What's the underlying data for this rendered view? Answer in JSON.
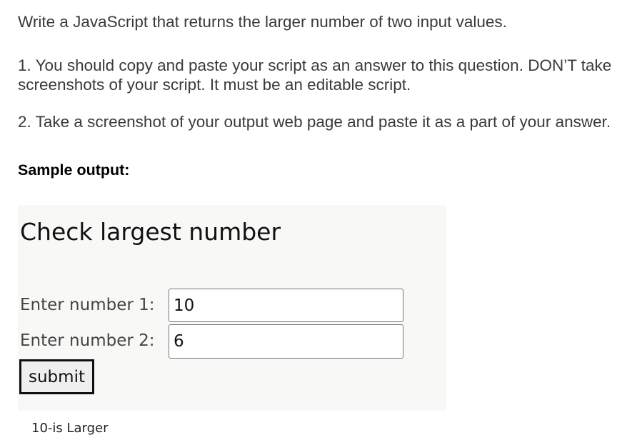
{
  "question": "Write a JavaScript that returns the larger number of two input values.",
  "steps": [
    "1. You should copy and paste your script as an answer to this question. DON’T take screenshots of your script. It must be an editable script.",
    "2. Take a screenshot of your output web page and paste it as a part of your answer."
  ],
  "sample_label": "Sample output:",
  "sample": {
    "title": "Check largest number",
    "label1": "Enter number 1:",
    "value1": "10",
    "label2": "Enter number 2:",
    "value2": "6",
    "submit_label": "submit",
    "result": "10-is Larger",
    "background": "#f8f9f7"
  }
}
